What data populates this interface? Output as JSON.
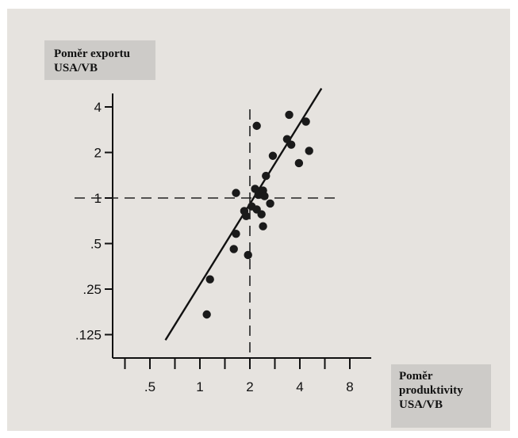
{
  "chart_data": {
    "type": "scatter",
    "xlabel": [
      "Poměr",
      "produktivity",
      "USA/VB"
    ],
    "ylabel": [
      "Poměr exportu",
      "USA/VB"
    ],
    "x_scale": "log2",
    "y_scale": "log2",
    "x_ticks": [
      {
        "value": 0.5,
        "label": ".5"
      },
      {
        "value": 1,
        "label": "1"
      },
      {
        "value": 2,
        "label": "2"
      },
      {
        "value": 4,
        "label": "4"
      },
      {
        "value": 8,
        "label": "8"
      }
    ],
    "y_ticks": [
      {
        "value": 0.125,
        "label": ".125"
      },
      {
        "value": 0.25,
        "label": ".25"
      },
      {
        "value": 0.5,
        "label": ".5"
      },
      {
        "value": 1,
        "label": "1"
      },
      {
        "value": 2,
        "label": "2"
      },
      {
        "value": 4,
        "label": "4"
      }
    ],
    "xlim": [
      0.36,
      10
    ],
    "ylim": [
      0.09,
      6.3
    ],
    "grid": false,
    "reference_lines": {
      "x": 2,
      "y": 1
    },
    "fit_line": {
      "from": [
        0.62,
        0.115
      ],
      "to": [
        5.4,
        5.3
      ]
    },
    "points": [
      {
        "x": 1.1,
        "y": 0.17
      },
      {
        "x": 1.15,
        "y": 0.29
      },
      {
        "x": 1.6,
        "y": 0.46
      },
      {
        "x": 1.65,
        "y": 0.58
      },
      {
        "x": 1.65,
        "y": 1.08
      },
      {
        "x": 1.85,
        "y": 0.82
      },
      {
        "x": 1.9,
        "y": 0.76
      },
      {
        "x": 1.95,
        "y": 0.42
      },
      {
        "x": 2.05,
        "y": 0.88
      },
      {
        "x": 2.15,
        "y": 1.15
      },
      {
        "x": 2.2,
        "y": 0.84
      },
      {
        "x": 2.25,
        "y": 1.05
      },
      {
        "x": 2.35,
        "y": 0.78
      },
      {
        "x": 2.4,
        "y": 0.65
      },
      {
        "x": 2.4,
        "y": 1.12
      },
      {
        "x": 2.45,
        "y": 1.03
      },
      {
        "x": 2.5,
        "y": 1.4
      },
      {
        "x": 2.65,
        "y": 0.92
      },
      {
        "x": 2.75,
        "y": 1.9
      },
      {
        "x": 2.2,
        "y": 3.0
      },
      {
        "x": 3.35,
        "y": 2.45
      },
      {
        "x": 3.45,
        "y": 3.55
      },
      {
        "x": 3.55,
        "y": 2.25
      },
      {
        "x": 3.95,
        "y": 1.7
      },
      {
        "x": 4.35,
        "y": 3.2
      },
      {
        "x": 4.55,
        "y": 2.05
      }
    ]
  }
}
